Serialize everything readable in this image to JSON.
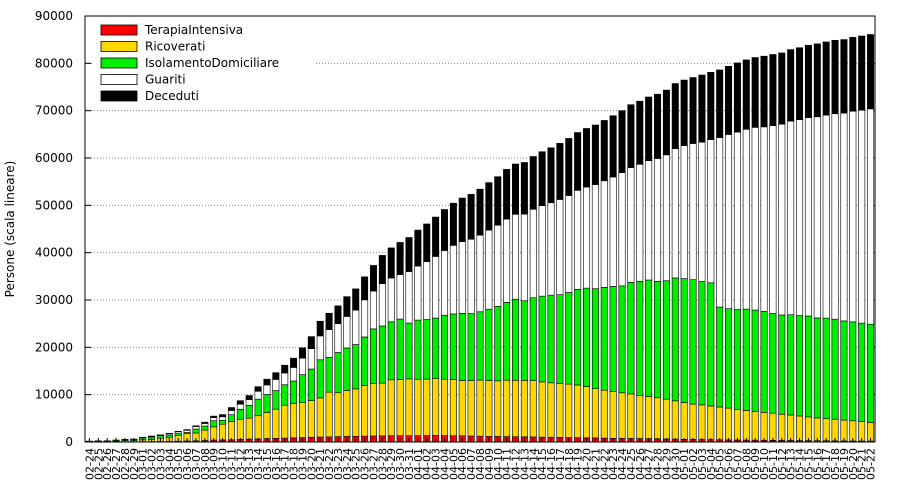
{
  "chart_data": {
    "type": "stacked-bar",
    "y_label": "Persone (scala lineare)",
    "categories": [
      "02-24",
      "02-25",
      "02-26",
      "02-27",
      "02-28",
      "02-29",
      "03-01",
      "03-02",
      "03-03",
      "03-04",
      "03-05",
      "03-06",
      "03-07",
      "03-08",
      "03-09",
      "03-10",
      "03-11",
      "03-12",
      "03-13",
      "03-14",
      "03-15",
      "03-16",
      "03-17",
      "03-18",
      "03-19",
      "03-20",
      "03-21",
      "03-22",
      "03-23",
      "03-24",
      "03-25",
      "03-26",
      "03-27",
      "03-28",
      "03-29",
      "03-30",
      "03-31",
      "04-01",
      "04-02",
      "04-03",
      "04-04",
      "04-05",
      "04-06",
      "04-07",
      "04-08",
      "04-09",
      "04-10",
      "04-11",
      "04-12",
      "04-13",
      "04-14",
      "04-15",
      "04-16",
      "04-17",
      "04-18",
      "04-19",
      "04-20",
      "04-21",
      "04-22",
      "04-23",
      "04-24",
      "04-25",
      "04-26",
      "04-27",
      "04-28",
      "04-29",
      "04-30",
      "05-01",
      "05-02",
      "05-03",
      "05-04",
      "05-05",
      "05-06",
      "05-07",
      "05-08",
      "05-09",
      "05-10",
      "05-11",
      "05-12",
      "05-13",
      "05-14",
      "05-15",
      "05-16",
      "05-17",
      "05-18",
      "05-19",
      "05-20",
      "05-21",
      "05-22"
    ],
    "series": [
      {
        "name": "TerapiaIntensiva",
        "color": "#ff0000",
        "values": [
          19,
          25,
          25,
          32,
          35,
          40,
          47,
          80,
          105,
          127,
          167,
          209,
          244,
          309,
          399,
          440,
          466,
          560,
          605,
          650,
          732,
          767,
          823,
          879,
          924,
          1006,
          1050,
          1093,
          1142,
          1183,
          1194,
          1236,
          1263,
          1292,
          1319,
          1328,
          1330,
          1342,
          1351,
          1381,
          1343,
          1317,
          1305,
          1263,
          1236,
          1202,
          1174,
          1143,
          1118,
          1089,
          1074,
          1032,
          1014,
          983,
          937,
          909,
          884,
          856,
          811,
          777,
          756,
          740,
          713,
          701,
          676,
          644,
          605,
          568,
          543,
          522,
          501,
          472,
          443,
          419,
          397,
          382,
          369,
          361,
          342,
          322,
          306,
          291,
          274,
          263,
          247,
          227,
          213,
          210,
          200
        ]
      },
      {
        "name": "Ricoverati",
        "color": "#ffd700",
        "values": [
          76,
          79,
          79,
          172,
          235,
          256,
          406,
          478,
          698,
          877,
          1169,
          1622,
          1661,
          2217,
          2802,
          3319,
          3852,
          4247,
          4435,
          4898,
          5500,
          6171,
          6953,
          7285,
          7387,
          7732,
          8258,
          9439,
          9266,
          9711,
          10026,
          10681,
          11137,
          11152,
          11815,
          11883,
          12009,
          11914,
          11927,
          12003,
          11927,
          11895,
          11686,
          11733,
          11833,
          11782,
          11753,
          11914,
          11921,
          11940,
          11902,
          11663,
          11489,
          11345,
          11291,
          11135,
          10837,
          10416,
          10132,
          9922,
          9642,
          9420,
          9111,
          8924,
          8671,
          8406,
          8095,
          7782,
          7475,
          7321,
          7108,
          6924,
          6726,
          6487,
          6271,
          6016,
          5891,
          5742,
          5524,
          5381,
          5191,
          5010,
          4818,
          4649,
          4562,
          4403,
          4266,
          4109,
          3931
        ]
      },
      {
        "name": "IsolamentoDomiciliare",
        "color": "#00ee00",
        "values": [
          71,
          127,
          145,
          185,
          204,
          256,
          460,
          519,
          523,
          493,
          441,
          177,
          837,
          846,
          1289,
          831,
          1445,
          2090,
          2692,
          3511,
          3811,
          3923,
          4319,
          4725,
          5917,
          6682,
          8062,
          7353,
          8502,
          8974,
          9371,
          10272,
          11495,
          12065,
          12258,
          12761,
          11785,
          12509,
          12598,
          12805,
          13511,
          13840,
          14194,
          14139,
          14440,
          15074,
          15718,
          16444,
          17121,
          16813,
          17496,
          18121,
          18521,
          18790,
          19349,
          20213,
          20790,
          21110,
          21712,
          22174,
          22587,
          23551,
          24133,
          24599,
          24608,
          25019,
          25959,
          26173,
          26274,
          26053,
          26022,
          21115,
          20999,
          21072,
          21401,
          21482,
          21323,
          21041,
          20976,
          21185,
          21212,
          21323,
          21116,
          21257,
          21143,
          20946,
          20905,
          20794,
          20755
        ]
      },
      {
        "name": "Guariti",
        "color": "#ffffff",
        "values": [
          0,
          0,
          0,
          0,
          40,
          40,
          40,
          139,
          139,
          250,
          376,
          469,
          524,
          550,
          646,
          733,
          900,
          1084,
          1198,
          1660,
          2011,
          2368,
          2485,
          2865,
          3488,
          4295,
          5050,
          5865,
          6075,
          6657,
          7281,
          7839,
          8001,
          8962,
          9255,
          9371,
          10885,
          11415,
          12229,
          13020,
          13681,
          14498,
          15147,
          15706,
          16183,
          16722,
          17165,
          17580,
          17948,
          18309,
          18700,
          19133,
          19521,
          20125,
          20508,
          20911,
          21349,
          22010,
          22536,
          23116,
          23909,
          24276,
          24718,
          25216,
          25949,
          26600,
          27301,
          28086,
          28772,
          29443,
          30243,
          35800,
          36800,
          37500,
          38000,
          38600,
          39000,
          39700,
          40300,
          40900,
          41400,
          41900,
          42500,
          42900,
          43400,
          43900,
          44500,
          45000,
          45500
        ]
      },
      {
        "name": "Deceduti",
        "color": "#000000",
        "values": [
          6,
          9,
          9,
          14,
          17,
          23,
          31,
          38,
          55,
          73,
          98,
          135,
          154,
          267,
          333,
          468,
          617,
          744,
          890,
          966,
          1218,
          1420,
          1640,
          1959,
          2168,
          2549,
          3095,
          3456,
          3776,
          4178,
          4474,
          4861,
          5402,
          5944,
          6360,
          6818,
          7199,
          7593,
          7960,
          8311,
          8656,
          8905,
          9202,
          9484,
          9722,
          10022,
          10238,
          10511,
          10621,
          10901,
          11142,
          11377,
          11608,
          11851,
          12050,
          12213,
          12376,
          12579,
          12740,
          12940,
          13106,
          13269,
          13325,
          13449,
          13575,
          13679,
          13772,
          13860,
          13938,
          14189,
          14231,
          14294,
          14401,
          14611,
          14654,
          14745,
          14924,
          15027,
          15054,
          15116,
          15189,
          15296,
          15411,
          15449,
          15519,
          15543,
          15597,
          15662,
          15705
        ]
      }
    ],
    "ylim": [
      0,
      90000
    ],
    "yticks": [
      0,
      10000,
      20000,
      30000,
      40000,
      50000,
      60000,
      70000,
      80000,
      90000
    ],
    "grid": true,
    "legend": "top-left"
  }
}
